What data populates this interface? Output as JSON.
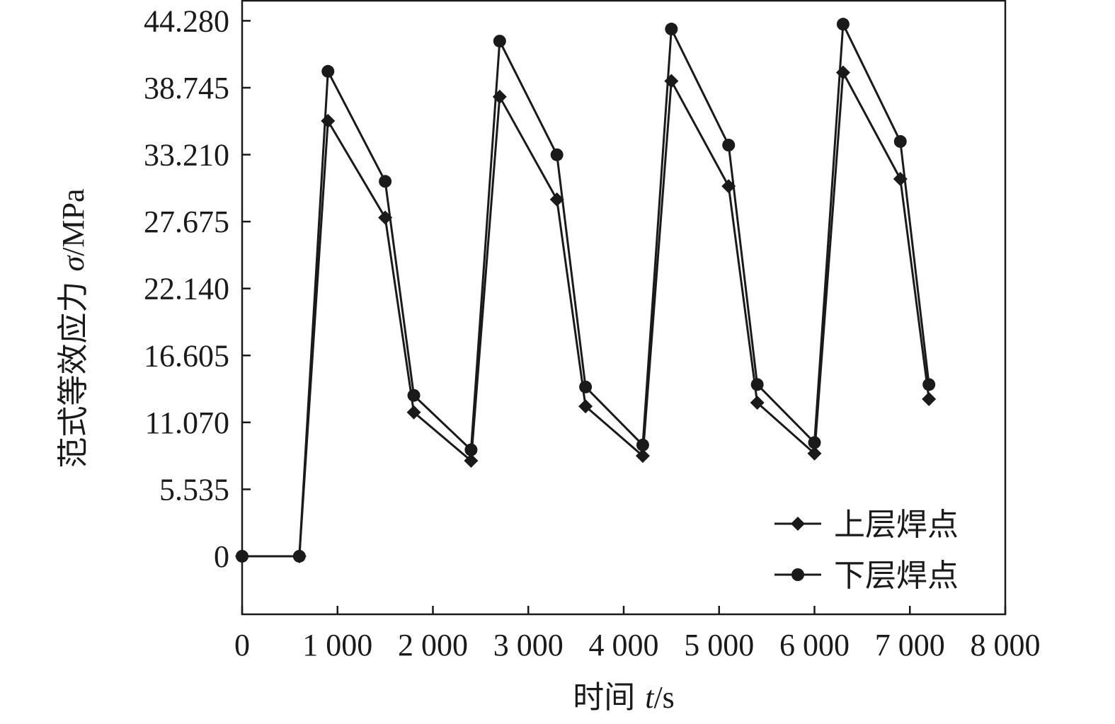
{
  "chart_data": {
    "type": "line",
    "title": "",
    "xlabel": {
      "prefix": "时间 ",
      "var": "t",
      "unit": "/s"
    },
    "ylabel": {
      "prefix": "范式等效应力 ",
      "var": "σ",
      "unit": "/MPa"
    },
    "xlim": [
      0,
      8000
    ],
    "ylim": [
      -4.8,
      46.0
    ],
    "x_ticks": [
      0,
      1000,
      2000,
      3000,
      4000,
      5000,
      6000,
      7000,
      8000
    ],
    "x_tick_labels": [
      "0",
      "1 000",
      "2 000",
      "3 000",
      "4 000",
      "5 000",
      "6 000",
      "7 000",
      "8 000"
    ],
    "y_ticks": [
      0,
      5.535,
      11.07,
      16.605,
      22.14,
      27.675,
      33.21,
      38.745,
      44.28
    ],
    "y_tick_labels": [
      "0",
      "5.535",
      "11.070",
      "16.605",
      "22.140",
      "27.675",
      "33.210",
      "38.745",
      "44.280"
    ],
    "grid": false,
    "legend_position": "bottom-right",
    "series": [
      {
        "name": "上层焊点",
        "marker": "diamond",
        "color": "#1a1a1a",
        "points": [
          [
            0,
            0
          ],
          [
            600,
            0
          ],
          [
            900,
            36.0
          ],
          [
            1500,
            28.0
          ],
          [
            1800,
            11.9
          ],
          [
            2400,
            7.9
          ],
          [
            2700,
            38.0
          ],
          [
            3300,
            29.5
          ],
          [
            3600,
            12.4
          ],
          [
            4200,
            8.3
          ],
          [
            4500,
            39.3
          ],
          [
            5100,
            30.6
          ],
          [
            5400,
            12.7
          ],
          [
            6000,
            8.5
          ],
          [
            6300,
            40.0
          ],
          [
            6900,
            31.2
          ],
          [
            7200,
            13.0
          ]
        ]
      },
      {
        "name": "下层焊点",
        "marker": "circle",
        "color": "#1a1a1a",
        "points": [
          [
            0,
            0
          ],
          [
            600,
            0
          ],
          [
            900,
            40.1
          ],
          [
            1500,
            31.0
          ],
          [
            1800,
            13.3
          ],
          [
            2400,
            8.8
          ],
          [
            2700,
            42.6
          ],
          [
            3300,
            33.2
          ],
          [
            3600,
            14.0
          ],
          [
            4200,
            9.2
          ],
          [
            4500,
            43.6
          ],
          [
            5100,
            34.0
          ],
          [
            5400,
            14.2
          ],
          [
            6000,
            9.4
          ],
          [
            6300,
            44.0
          ],
          [
            6900,
            34.3
          ],
          [
            7200,
            14.2
          ]
        ]
      }
    ]
  }
}
